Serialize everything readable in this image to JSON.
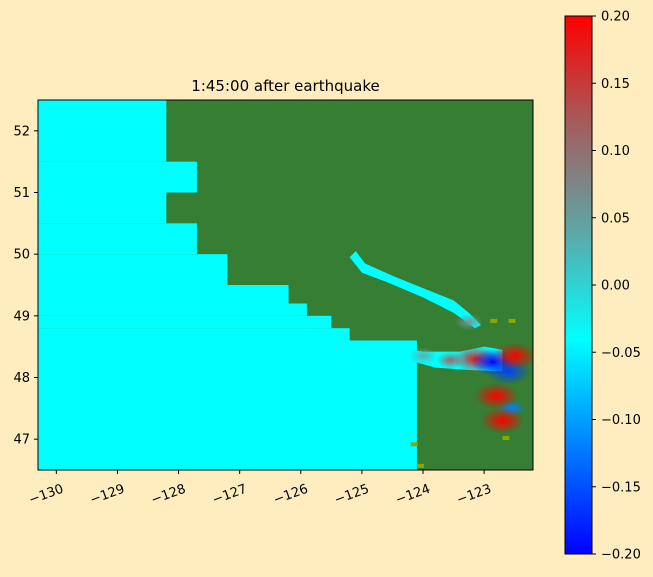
{
  "chart_data": [
    {
      "type": "heatmap",
      "title": "1:45:00 after earthquake",
      "xlabel": "",
      "ylabel": "",
      "xlim": [
        -130.3,
        -122.2
      ],
      "ylim": [
        46.5,
        52.5
      ],
      "x_ticks": [
        -130,
        -129,
        -128,
        -127,
        -126,
        -125,
        -124,
        -123
      ],
      "x_tick_labels": [
        "−130",
        "−129",
        "−128",
        "−127",
        "−126",
        "−125",
        "−124",
        "−123"
      ],
      "y_ticks": [
        47,
        48,
        49,
        50,
        51,
        52
      ],
      "y_tick_labels": [
        "47",
        "48",
        "49",
        "50",
        "51",
        "52"
      ],
      "grid": false,
      "colors": {
        "land": "#357e33",
        "water_zero": "#00ffff",
        "positive_max": "#ff0000",
        "negative_max": "#0000ff",
        "land_fringe": "#8aa800"
      },
      "ocean_steps": [
        {
          "lat_from": 52.5,
          "lat_to": 51.5,
          "coast_lon": -128.2
        },
        {
          "lat_from": 51.5,
          "lat_to": 51.0,
          "coast_lon": -127.7
        },
        {
          "lat_from": 51.0,
          "lat_to": 50.5,
          "coast_lon": -128.2
        },
        {
          "lat_from": 50.5,
          "lat_to": 50.0,
          "coast_lon": -127.7
        },
        {
          "lat_from": 50.0,
          "lat_to": 49.5,
          "coast_lon": -127.2
        },
        {
          "lat_from": 49.5,
          "lat_to": 49.2,
          "coast_lon": -126.2
        },
        {
          "lat_from": 49.2,
          "lat_to": 49.0,
          "coast_lon": -125.9
        },
        {
          "lat_from": 49.0,
          "lat_to": 48.8,
          "coast_lon": -125.5
        },
        {
          "lat_from": 48.8,
          "lat_to": 48.6,
          "coast_lon": -125.2
        },
        {
          "lat_from": 48.6,
          "lat_to": 46.5,
          "coast_lon": -124.1
        }
      ],
      "amplitude_features": [
        {
          "lon": -123.15,
          "lat": 48.3,
          "value": 0.18
        },
        {
          "lon": -123.55,
          "lat": 48.28,
          "value": 0.12
        },
        {
          "lon": -122.85,
          "lat": 48.25,
          "value": -0.2
        },
        {
          "lon": -122.6,
          "lat": 48.1,
          "value": -0.15
        },
        {
          "lon": -122.55,
          "lat": 47.5,
          "value": -0.1
        },
        {
          "lon": -122.5,
          "lat": 48.35,
          "value": 0.2
        },
        {
          "lon": -123.25,
          "lat": 48.9,
          "value": 0.08
        },
        {
          "lon": -124.0,
          "lat": 48.35,
          "value": 0.06
        },
        {
          "lon": -122.8,
          "lat": 47.7,
          "value": 0.2
        },
        {
          "lon": -122.7,
          "lat": 47.3,
          "value": 0.2
        }
      ]
    },
    {
      "type": "colorbar",
      "ylim": [
        -0.2,
        0.2
      ],
      "ticks": [
        0.2,
        0.15,
        0.1,
        0.05,
        0.0,
        -0.05,
        -0.1,
        -0.15,
        -0.2
      ],
      "tick_labels": [
        "0.20",
        "0.15",
        "0.10",
        "0.05",
        "0.00",
        "−0.05",
        "−0.10",
        "−0.15",
        "−0.20"
      ],
      "colors": [
        "#0000ff",
        "#0080ff",
        "#00ffff",
        "#5fa6a6",
        "#a35d5d",
        "#ff0000"
      ]
    }
  ]
}
